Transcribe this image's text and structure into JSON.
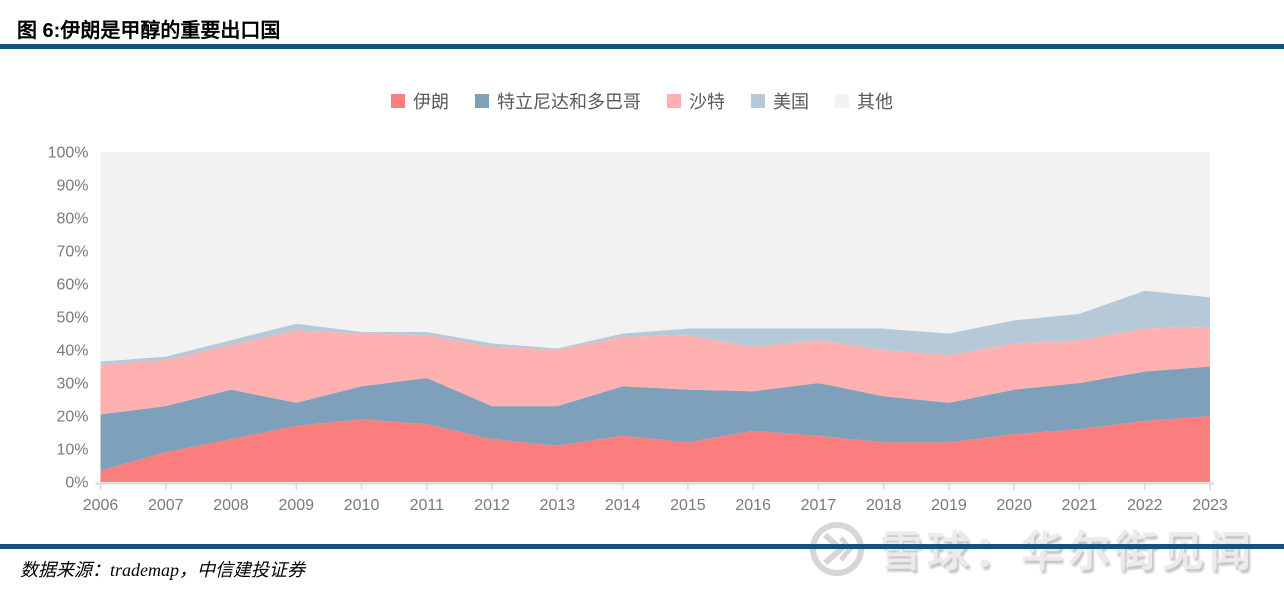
{
  "header": {
    "title": "图 6:伊朗是甲醇的重要出口国"
  },
  "chart_data": {
    "type": "area",
    "stacked": true,
    "percent_stack": true,
    "title": "图 6:伊朗是甲醇的重要出口国",
    "x": [
      "2006",
      "2007",
      "2008",
      "2009",
      "2010",
      "2011",
      "2012",
      "2013",
      "2014",
      "2015",
      "2016",
      "2017",
      "2018",
      "2019",
      "2020",
      "2021",
      "2022",
      "2023"
    ],
    "series": [
      {
        "name": "伊朗",
        "color": "#fb7e7e",
        "values": [
          3.5,
          9,
          13,
          17,
          19,
          17.5,
          13,
          11,
          14,
          12,
          15.5,
          14,
          12,
          12,
          14.5,
          16,
          18.5,
          20
        ]
      },
      {
        "name": "特立尼达和多巴哥",
        "color": "#7fa0ba",
        "values": [
          17,
          14,
          15,
          7,
          10,
          14,
          10,
          12,
          15,
          16,
          12,
          16,
          14,
          12,
          13.5,
          14,
          15,
          15
        ]
      },
      {
        "name": "沙特",
        "color": "#ffb0b1",
        "values": [
          15,
          14,
          13.5,
          22,
          16,
          13,
          18,
          17,
          15,
          16.5,
          13.5,
          13,
          14,
          14.5,
          14,
          13,
          13,
          12
        ]
      },
      {
        "name": "美国",
        "color": "#b5c9d8",
        "values": [
          1,
          1,
          1.5,
          2,
          0.5,
          1,
          1,
          0.5,
          1,
          2,
          5.5,
          3.5,
          6.5,
          6.5,
          7,
          8,
          11.5,
          9
        ]
      },
      {
        "name": "其他",
        "color": "#f2f2f2",
        "values": [
          63.5,
          62,
          57,
          52,
          54.5,
          54.5,
          58,
          59.5,
          55,
          53.5,
          53.5,
          53.5,
          53.5,
          55,
          51,
          49,
          42,
          44
        ]
      }
    ],
    "ylim": [
      0,
      100
    ],
    "y_tick_step": 10,
    "y_tick_labels": [
      "0%",
      "10%",
      "20%",
      "30%",
      "40%",
      "50%",
      "60%",
      "70%",
      "80%",
      "90%",
      "100%"
    ],
    "legend_position": "top-center",
    "grid": false
  },
  "footer": {
    "source": "数据来源：trademap，中信建投证券",
    "watermark_text": "雪球：华尔街见闻"
  },
  "colors": {
    "divider_blue": "#14527c",
    "axis_text": "#7a7a7a",
    "legend_text": "#595959",
    "tick_line": "#d9d9d9"
  }
}
